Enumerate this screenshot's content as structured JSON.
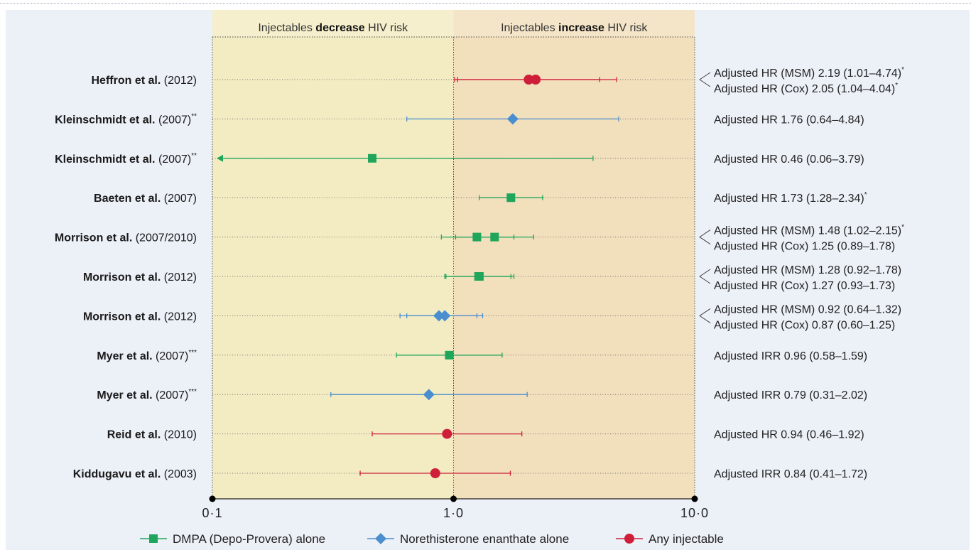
{
  "chart_data": {
    "type": "forest",
    "x_scale": "log",
    "xlim": [
      0.1,
      10.0
    ],
    "x_ticks": [
      "0·1",
      "1·0",
      "10·0"
    ],
    "reference_line": 1.0,
    "regions": [
      {
        "label_pre": "Injectables ",
        "label_bold": "decrease",
        "label_post": " HIV risk",
        "color": "#f3ecc2"
      },
      {
        "label_pre": "Injectables ",
        "label_bold": "increase",
        "label_post": " HIV risk",
        "color": "#f2dfbc"
      }
    ],
    "legend": [
      {
        "name": "DMPA (Depo-Provera) alone",
        "color": "#1fa65a",
        "marker": "square"
      },
      {
        "name": "Norethisterone enanthate alone",
        "color": "#4a8ed0",
        "marker": "diamond"
      },
      {
        "name": "Any injectable",
        "color": "#cf1e3a",
        "marker": "circle"
      }
    ],
    "rows": [
      {
        "author": "Heffron et al.",
        "year": "(2012)",
        "note": "",
        "marker": "circle",
        "color": "#cf1e3a",
        "estimates": [
          {
            "value": 2.19,
            "low": 1.01,
            "high": 4.74
          },
          {
            "value": 2.05,
            "low": 1.04,
            "high": 4.04
          }
        ],
        "labels": [
          "Adjusted HR (MSM) 2.19 (1.01–4.74)",
          "Adjusted HR (Cox) 2.05 (1.04–4.04)"
        ],
        "label_notes": [
          "*",
          "*"
        ]
      },
      {
        "author": "Kleinschmidt et al.",
        "year": "(2007)",
        "note": "**",
        "marker": "diamond",
        "color": "#4a8ed0",
        "estimates": [
          {
            "value": 1.76,
            "low": 0.64,
            "high": 4.84
          }
        ],
        "labels": [
          "Adjusted HR 1.76 (0.64–4.84)"
        ],
        "label_notes": [
          ""
        ]
      },
      {
        "author": "Kleinschmidt et al.",
        "year": "(2007)",
        "note": "**",
        "marker": "square",
        "color": "#1fa65a",
        "estimates": [
          {
            "value": 0.46,
            "low": 0.06,
            "high": 3.79
          }
        ],
        "labels": [
          "Adjusted HR 0.46 (0.06–3.79)"
        ],
        "label_notes": [
          ""
        ]
      },
      {
        "author": "Baeten et al.",
        "year": "(2007)",
        "note": "",
        "marker": "square",
        "color": "#1fa65a",
        "estimates": [
          {
            "value": 1.73,
            "low": 1.28,
            "high": 2.34
          }
        ],
        "labels": [
          "Adjusted HR 1.73 (1.28–2.34)"
        ],
        "label_notes": [
          "*"
        ]
      },
      {
        "author": "Morrison et al.",
        "year": "(2007/2010)",
        "note": "",
        "marker": "square",
        "color": "#1fa65a",
        "estimates": [
          {
            "value": 1.48,
            "low": 1.02,
            "high": 2.15
          },
          {
            "value": 1.25,
            "low": 0.89,
            "high": 1.78
          }
        ],
        "labels": [
          "Adjusted HR (MSM) 1.48 (1.02–2.15)",
          "Adjusted HR (Cox) 1.25 (0.89–1.78)"
        ],
        "label_notes": [
          "*",
          ""
        ]
      },
      {
        "author": "Morrison et al.",
        "year": "(2012)",
        "note": "",
        "marker": "square",
        "color": "#1fa65a",
        "estimates": [
          {
            "value": 1.28,
            "low": 0.92,
            "high": 1.78
          },
          {
            "value": 1.27,
            "low": 0.93,
            "high": 1.73
          }
        ],
        "labels": [
          "Adjusted HR (MSM) 1.28 (0.92–1.78)",
          "Adjusted HR (Cox) 1.27 (0.93–1.73)"
        ],
        "label_notes": [
          "",
          ""
        ]
      },
      {
        "author": "Morrison et al.",
        "year": "(2012)",
        "note": "",
        "marker": "diamond",
        "color": "#4a8ed0",
        "estimates": [
          {
            "value": 0.92,
            "low": 0.64,
            "high": 1.32
          },
          {
            "value": 0.87,
            "low": 0.6,
            "high": 1.25
          }
        ],
        "labels": [
          "Adjusted HR (MSM) 0.92 (0.64–1.32)",
          "Adjusted HR (Cox) 0.87 (0.60–1.25)"
        ],
        "label_notes": [
          "",
          ""
        ]
      },
      {
        "author": "Myer et al.",
        "year": "(2007)",
        "note": "***",
        "marker": "square",
        "color": "#1fa65a",
        "estimates": [
          {
            "value": 0.96,
            "low": 0.58,
            "high": 1.59
          }
        ],
        "labels": [
          "Adjusted IRR 0.96 (0.58–1.59)"
        ],
        "label_notes": [
          ""
        ]
      },
      {
        "author": "Myer et al.",
        "year": "(2007)",
        "note": "***",
        "marker": "diamond",
        "color": "#4a8ed0",
        "estimates": [
          {
            "value": 0.79,
            "low": 0.31,
            "high": 2.02
          }
        ],
        "labels": [
          "Adjusted IRR 0.79 (0.31–2.02)"
        ],
        "label_notes": [
          ""
        ]
      },
      {
        "author": "Reid et al.",
        "year": "(2010)",
        "note": "",
        "marker": "circle",
        "color": "#cf1e3a",
        "estimates": [
          {
            "value": 0.94,
            "low": 0.46,
            "high": 1.92
          }
        ],
        "labels": [
          "Adjusted HR 0.94 (0.46–1.92)"
        ],
        "label_notes": [
          ""
        ]
      },
      {
        "author": "Kiddugavu et al.",
        "year": "(2003)",
        "note": "",
        "marker": "circle",
        "color": "#cf1e3a",
        "estimates": [
          {
            "value": 0.84,
            "low": 0.41,
            "high": 1.72
          }
        ],
        "labels": [
          "Adjusted IRR 0.84 (0.41–1.72)"
        ],
        "label_notes": [
          ""
        ]
      }
    ]
  }
}
